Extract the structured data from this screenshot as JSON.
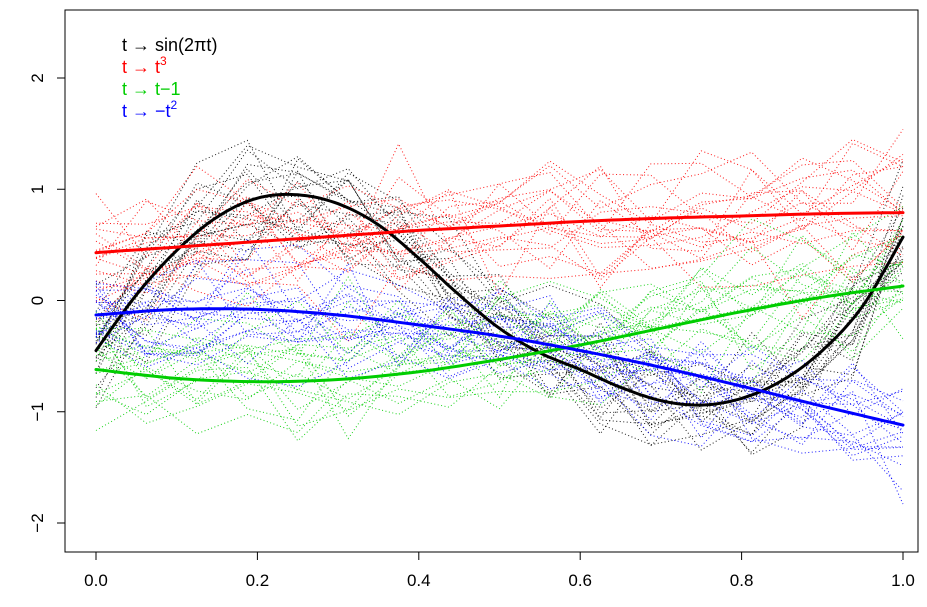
{
  "chart_data": {
    "type": "line",
    "xlim": [
      0,
      1
    ],
    "ylim": [
      -2,
      2
    ],
    "x_ticks": [
      {
        "value": 0.0,
        "label": "0.0"
      },
      {
        "value": 0.2,
        "label": "0.2"
      },
      {
        "value": 0.4,
        "label": "0.4"
      },
      {
        "value": 0.6,
        "label": "0.6"
      },
      {
        "value": 0.8,
        "label": "0.8"
      },
      {
        "value": 1.0,
        "label": "1.0"
      }
    ],
    "y_ticks": [
      {
        "value": -2,
        "label": "−2"
      },
      {
        "value": -1,
        "label": "−1"
      },
      {
        "value": 0,
        "label": "0"
      },
      {
        "value": 1,
        "label": "1"
      },
      {
        "value": 2,
        "label": "2"
      }
    ],
    "grid": false,
    "legend_position": "top-left",
    "legend": [
      {
        "text": "t → sin(2πt)",
        "base": "",
        "sup": "",
        "color": "#000000"
      },
      {
        "text": "t → t",
        "base": "",
        "sup": "3",
        "color": "#ff0000"
      },
      {
        "text": "t → t−1",
        "base": "",
        "sup": "",
        "color": "#00cd00"
      },
      {
        "text": "t → −t",
        "base": "",
        "sup": "2",
        "color": "#0000ff"
      }
    ],
    "series": [
      {
        "color": "#000000",
        "style": "solid",
        "x": [
          0.0,
          0.05,
          0.1,
          0.15,
          0.2,
          0.25,
          0.3,
          0.35,
          0.4,
          0.45,
          0.5,
          0.55,
          0.6,
          0.65,
          0.7,
          0.75,
          0.8,
          0.85,
          0.9,
          0.95,
          1.0
        ],
        "y": [
          -0.45,
          0.05,
          0.45,
          0.75,
          0.92,
          0.95,
          0.87,
          0.68,
          0.38,
          0.05,
          -0.25,
          -0.47,
          -0.62,
          -0.78,
          -0.9,
          -0.94,
          -0.88,
          -0.72,
          -0.45,
          -0.05,
          0.57
        ]
      },
      {
        "color": "#ff0000",
        "style": "solid",
        "x": [
          0.0,
          0.1,
          0.2,
          0.3,
          0.4,
          0.5,
          0.6,
          0.7,
          0.8,
          0.9,
          1.0
        ],
        "y": [
          0.43,
          0.48,
          0.53,
          0.58,
          0.63,
          0.67,
          0.71,
          0.74,
          0.76,
          0.78,
          0.79
        ]
      },
      {
        "color": "#00cd00",
        "style": "solid",
        "x": [
          0.0,
          0.1,
          0.2,
          0.3,
          0.4,
          0.5,
          0.6,
          0.7,
          0.8,
          0.9,
          1.0
        ],
        "y": [
          -0.62,
          -0.7,
          -0.73,
          -0.71,
          -0.64,
          -0.53,
          -0.4,
          -0.25,
          -0.1,
          0.03,
          0.13
        ]
      },
      {
        "color": "#0000ff",
        "style": "solid",
        "x": [
          0.0,
          0.1,
          0.2,
          0.3,
          0.4,
          0.5,
          0.6,
          0.7,
          0.8,
          0.9,
          1.0
        ],
        "y": [
          -0.13,
          -0.08,
          -0.08,
          -0.13,
          -0.22,
          -0.32,
          -0.45,
          -0.6,
          -0.77,
          -0.95,
          -1.12
        ]
      }
    ],
    "noisy_samples_per_color": 20,
    "noisy_samples_note_values": "dotted replicate curves scattered around each solid mean curve, values roughly within [-2.1, 2.4]"
  }
}
